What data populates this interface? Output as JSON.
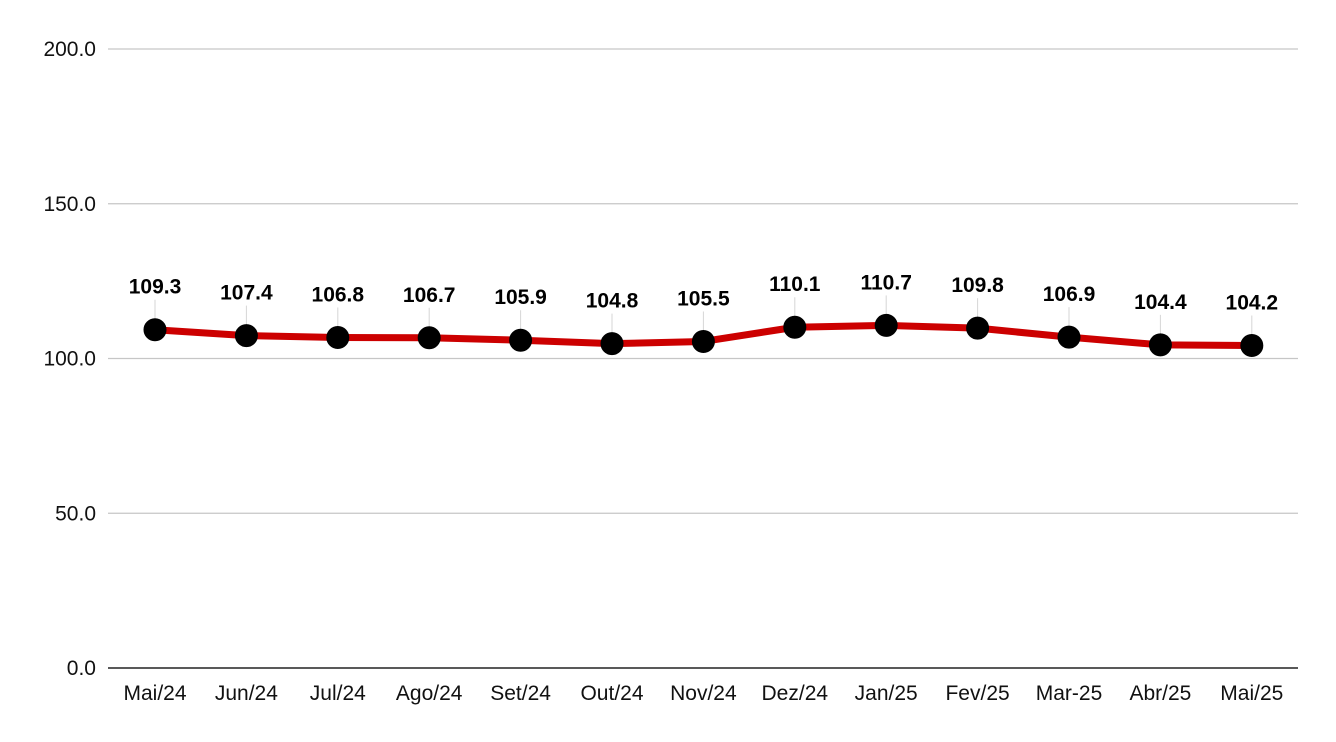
{
  "chart_data": {
    "type": "line",
    "categories": [
      "Mai/24",
      "Jun/24",
      "Jul/24",
      "Ago/24",
      "Set/24",
      "Out/24",
      "Nov/24",
      "Dez/24",
      "Jan/25",
      "Fev/25",
      "Mar-25",
      "Abr/25",
      "Mai/25"
    ],
    "series": [
      {
        "values": [
          109.3,
          107.4,
          106.8,
          106.7,
          105.9,
          104.8,
          105.5,
          110.1,
          110.7,
          109.8,
          106.9,
          104.4,
          104.2
        ],
        "labels": [
          "109.3",
          "107.4",
          "106.8",
          "106.7",
          "105.9",
          "104.8",
          "105.5",
          "110.1",
          "110.7",
          "109.8",
          "106.9",
          "104.4",
          "104.2"
        ],
        "line_color": "#cc0000",
        "marker_color": "#000000"
      }
    ],
    "y_ticks": [
      "0.0",
      "50.0",
      "100.0",
      "150.0",
      "200.0"
    ],
    "ylim": [
      0,
      200
    ],
    "title": "",
    "xlabel": "",
    "ylabel": "",
    "grid": true,
    "legend": "none"
  }
}
